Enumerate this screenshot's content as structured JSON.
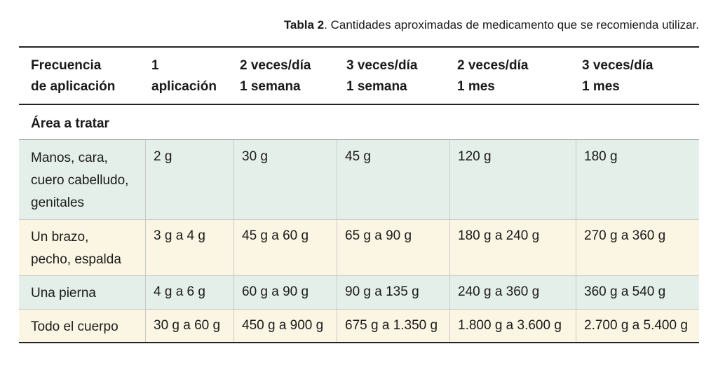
{
  "caption": {
    "label": "Tabla 2",
    "text": ". Cantidades aproximadas de medicamento que se recomienda utilizar."
  },
  "table": {
    "header": [
      [
        "Frecuencia",
        "de aplicación"
      ],
      [
        "1",
        "aplicación"
      ],
      [
        "2 veces/día",
        "1 semana"
      ],
      [
        "3 veces/día",
        "1 semana"
      ],
      [
        "2 veces/día",
        "1 mes"
      ],
      [
        "3 veces/día",
        "1 mes"
      ]
    ],
    "section": "Área a tratar",
    "rows": [
      {
        "area": [
          "Manos, cara,",
          "cuero cabelludo,",
          "genitales"
        ],
        "values": [
          "2 g",
          "30 g",
          "45 g",
          "120 g",
          "180 g"
        ]
      },
      {
        "area": [
          "Un brazo,",
          "pecho, espalda"
        ],
        "values": [
          "3 g a 4 g",
          "45 g a 60 g",
          "65 g a 90 g",
          "180 g a 240 g",
          "270 g a 360 g"
        ]
      },
      {
        "area": [
          "Una pierna"
        ],
        "values": [
          "4 g a 6 g",
          "60 g a 90 g",
          "90 g a 135 g",
          "240 g a 360 g",
          "360 g a 540 g"
        ]
      },
      {
        "area": [
          "Todo el cuerpo"
        ],
        "values": [
          "30 g a 60 g",
          "450 g a 900 g",
          "675 g a 1.350 g",
          "1.800 g a 3.600 g",
          "2.700 g a 5.400 g"
        ]
      }
    ]
  }
}
